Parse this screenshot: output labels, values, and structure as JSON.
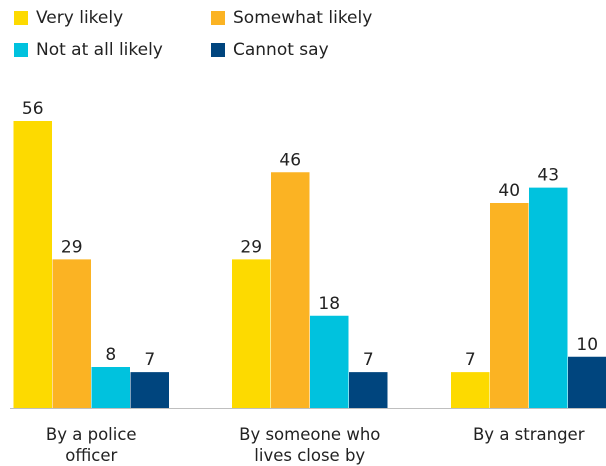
{
  "chart_data": {
    "type": "bar",
    "title": "",
    "xlabel": "",
    "ylabel": "",
    "categories": [
      [
        "By a police",
        "officer"
      ],
      [
        "By someone who",
        "lives close by"
      ],
      [
        "By a stranger"
      ]
    ],
    "series": [
      {
        "name": "Very likely",
        "color": "#FDDA00",
        "values": [
          56,
          29,
          7
        ]
      },
      {
        "name": "Somewhat likely",
        "color": "#FBB323",
        "values": [
          29,
          46,
          40
        ]
      },
      {
        "name": "Not at all likely",
        "color": "#00C2DE",
        "values": [
          8,
          18,
          43
        ]
      },
      {
        "name": "Cannot say",
        "color": "#00457E",
        "values": [
          7,
          7,
          10
        ]
      }
    ],
    "ylim": [
      0,
      56
    ],
    "grid": false,
    "legend_position": "top-left"
  }
}
